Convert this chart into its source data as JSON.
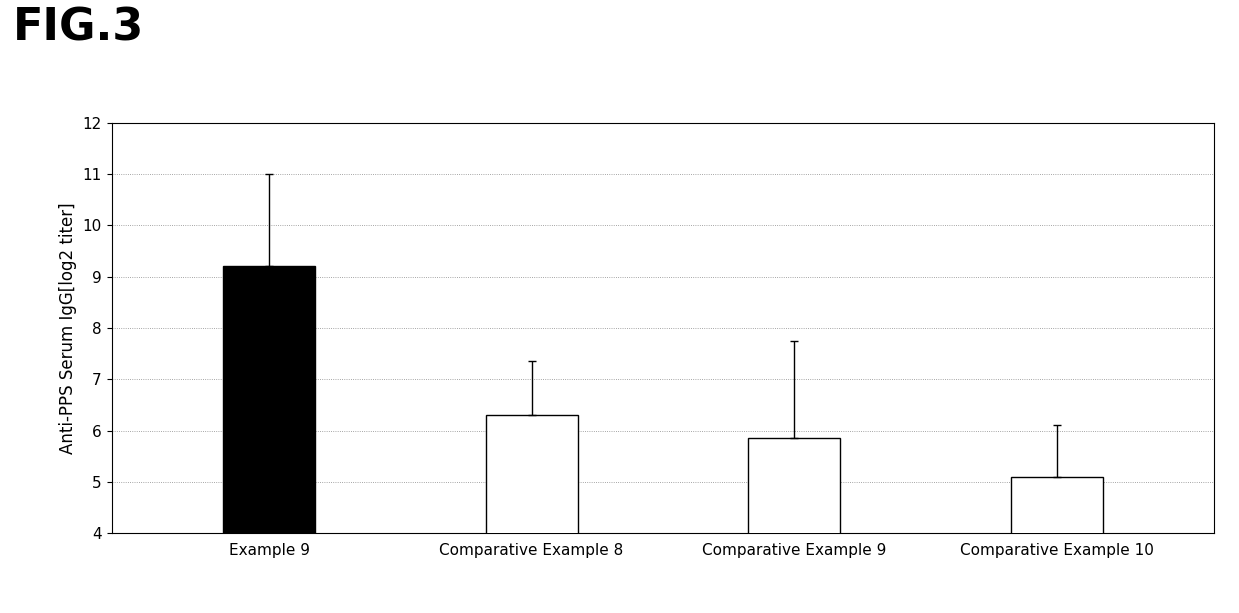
{
  "fig_title": "FIG.3",
  "ylabel": "Anti-PPS Serum IgG[log2 titer]",
  "ylim": [
    4,
    12
  ],
  "yticks": [
    4,
    5,
    6,
    7,
    8,
    9,
    10,
    11,
    12
  ],
  "categories": [
    "Example 9",
    "Comparative Example 8",
    "Comparative Example 9",
    "Comparative Example 10"
  ],
  "values": [
    9.2,
    6.3,
    5.85,
    5.1
  ],
  "errors": [
    1.8,
    1.05,
    1.9,
    1.0
  ],
  "bar_colors": [
    "#000000",
    "#ffffff",
    "#ffffff",
    "#ffffff"
  ],
  "bar_edgecolors": [
    "#000000",
    "#000000",
    "#000000",
    "#000000"
  ],
  "bar_width": 0.35,
  "grid_linestyle": ":",
  "grid_color": "#888888",
  "background_color": "#ffffff",
  "fig_title_fontsize": 32,
  "axis_fontsize": 12,
  "tick_fontsize": 11,
  "label_fontsize": 11
}
